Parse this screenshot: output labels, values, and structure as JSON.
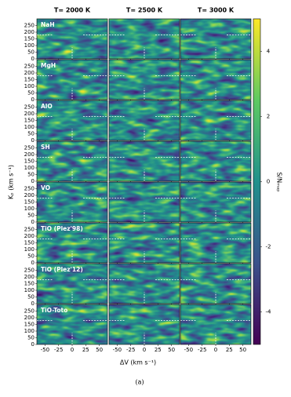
{
  "chart_data": {
    "type": "heatmap-grid",
    "columns": [
      "T= 2000 K",
      "T= 2500 K",
      "T= 3000 K"
    ],
    "rows": [
      "NaH",
      "MgH",
      "AlO",
      "SH",
      "VO",
      "TiO (Plez'98)",
      "TiO (Plez'12)",
      "TiO-Toto"
    ],
    "xlabel": "ΔV (km s⁻¹)",
    "ylabel": "Kₚ (km s⁻¹)",
    "xlim": [
      -65,
      65
    ],
    "xticks": [
      -50,
      -25,
      0,
      25,
      50
    ],
    "ylim": [
      0,
      300
    ],
    "yticks": [
      0,
      50,
      100,
      150,
      200,
      250
    ],
    "crosshair": {
      "x": 0,
      "y": 180
    },
    "colorbar": {
      "label": "S/Nₘₐₚ",
      "lim": [
        -5,
        5
      ],
      "ticks": [
        -4,
        -2,
        0,
        2,
        4
      ],
      "colormap": "viridis"
    },
    "caption": "(a)"
  }
}
